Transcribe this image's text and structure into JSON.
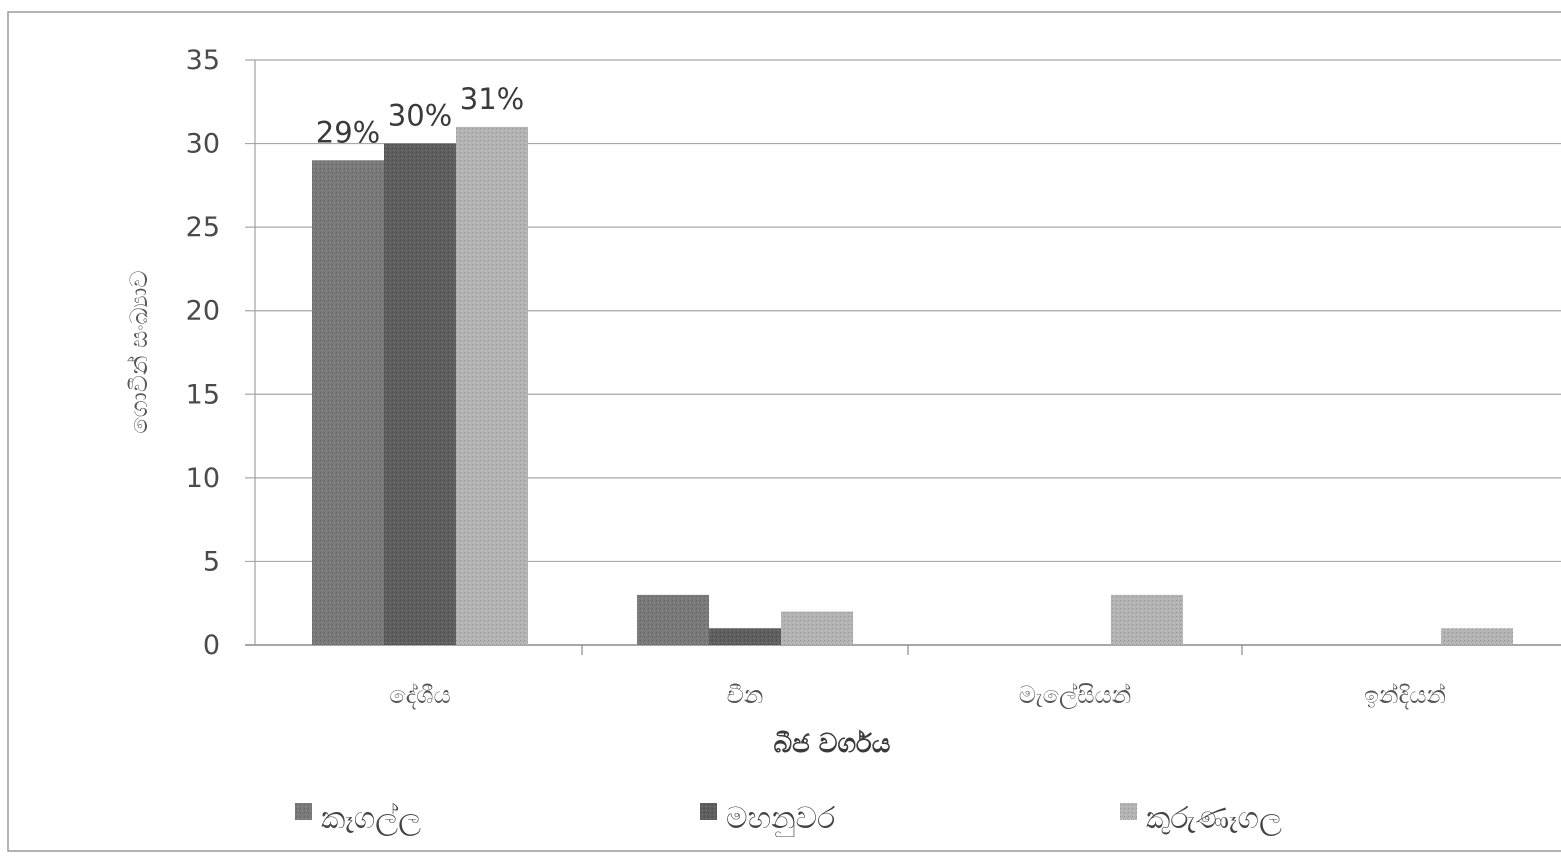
{
  "chart_data": {
    "type": "bar",
    "categories": [
      "දේශීය",
      "චීන",
      "මැලේසියන්",
      "ඉන්දියන්"
    ],
    "series": [
      {
        "name": "කෑගල්ල",
        "values": [
          29,
          3,
          0,
          0
        ],
        "color": "#7a7a7a",
        "data_labels": [
          "29%",
          "",
          "",
          ""
        ]
      },
      {
        "name": "මහනුවර",
        "values": [
          30,
          1,
          0,
          0
        ],
        "color": "#5f5f5f",
        "data_labels": [
          "30%",
          "",
          "",
          ""
        ]
      },
      {
        "name": "කුරුණෑගල",
        "values": [
          31,
          2,
          3,
          1
        ],
        "color": "#b4b4b4",
        "data_labels": [
          "31%",
          "",
          "",
          ""
        ]
      }
    ],
    "xlabel": "බීජ වර්ගය",
    "ylabel": "ගොවීන් සංඛ්‍යාව",
    "ylim": [
      0,
      35
    ],
    "yticks": [
      0,
      5,
      10,
      15,
      20,
      25,
      30,
      35
    ],
    "grid": true,
    "legend_position": "bottom"
  }
}
